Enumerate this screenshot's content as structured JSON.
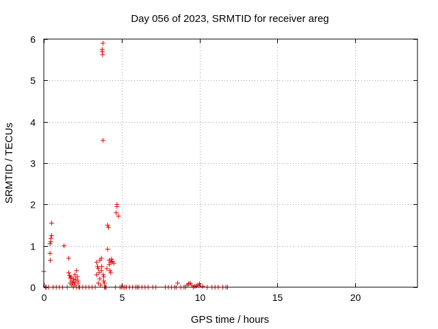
{
  "chart_data": {
    "type": "scatter",
    "title": "Day 056 of 2023, SRMTID for receiver areg",
    "xlabel": "GPS time / hours",
    "ylabel": "SRMTID / TECUs",
    "xlim": [
      0,
      24
    ],
    "ylim": [
      0,
      6
    ],
    "xticks": [
      0,
      5,
      10,
      15,
      20
    ],
    "xtick_labels": [
      "0",
      "5",
      "10",
      "15",
      "20"
    ],
    "yticks": [
      0,
      1,
      2,
      3,
      4,
      5,
      6
    ],
    "ytick_labels": [
      "0",
      "1",
      "2",
      "3",
      "4",
      "5",
      "6"
    ],
    "grid": true,
    "marker": "+",
    "color": "#dd0000",
    "series": [
      {
        "name": "SRMTID",
        "x": [
          0.0,
          0.1,
          0.15,
          0.3,
          0.4,
          0.4,
          0.42,
          0.45,
          0.45,
          0.5,
          0.5,
          0.6,
          0.8,
          1.0,
          1.2,
          1.3,
          1.5,
          1.6,
          1.6,
          1.65,
          1.7,
          1.7,
          1.75,
          1.8,
          1.8,
          1.85,
          1.9,
          1.9,
          1.95,
          2.0,
          2.0,
          2.05,
          2.1,
          2.1,
          2.15,
          2.2,
          2.2,
          2.25,
          2.3,
          2.5,
          2.7,
          2.9,
          3.1,
          3.3,
          3.4,
          3.4,
          3.45,
          3.5,
          3.5,
          3.55,
          3.6,
          3.6,
          3.65,
          3.7,
          3.7,
          3.72,
          3.75,
          3.75,
          3.78,
          3.8,
          3.8,
          3.82,
          3.85,
          3.85,
          3.9,
          3.9,
          3.95,
          4.0,
          4.05,
          4.1,
          4.1,
          4.15,
          4.2,
          4.2,
          4.25,
          4.3,
          4.3,
          4.35,
          4.4,
          4.5,
          4.6,
          4.65,
          4.7,
          4.7,
          4.8,
          4.9,
          5.0,
          5.1,
          5.2,
          5.3,
          5.5,
          5.7,
          5.9,
          6.0,
          6.1,
          6.3,
          6.5,
          6.7,
          7.0,
          7.2,
          7.8,
          8.0,
          8.2,
          8.4,
          8.5,
          8.6,
          8.8,
          9.0,
          9.1,
          9.2,
          9.3,
          9.4,
          9.5,
          9.6,
          9.7,
          9.8,
          9.9,
          10.0,
          10.2,
          10.5,
          10.8,
          11.0,
          11.2,
          11.5,
          11.7,
          11.8
        ],
        "y": [
          0.38,
          0.0,
          0.0,
          0.0,
          1.05,
          0.82,
          0.65,
          1.18,
          1.1,
          1.25,
          1.55,
          0.0,
          0.0,
          0.0,
          0.0,
          1.0,
          0.0,
          0.35,
          0.7,
          0.28,
          0.22,
          0.1,
          0.25,
          0.15,
          0.05,
          0.1,
          0.2,
          0.0,
          0.12,
          0.3,
          0.05,
          0.18,
          0.4,
          0.0,
          0.25,
          0.1,
          0.15,
          0.0,
          0.0,
          0.0,
          0.0,
          0.0,
          0.0,
          0.0,
          0.6,
          0.3,
          0.5,
          0.45,
          0.1,
          0.35,
          0.65,
          0.2,
          0.05,
          0.7,
          0.4,
          0.5,
          5.75,
          5.7,
          5.62,
          5.9,
          3.55,
          0.3,
          0.25,
          0.15,
          0.1,
          0.0,
          0.0,
          0.0,
          0.45,
          1.5,
          0.92,
          1.45,
          0.65,
          0.55,
          0.4,
          0.6,
          0.35,
          0.68,
          0.62,
          0.58,
          0.0,
          1.8,
          1.95,
          2.0,
          1.72,
          0.0,
          0.0,
          0.0,
          0.0,
          0.0,
          0.0,
          0.0,
          0.0,
          0.0,
          0.0,
          0.0,
          0.0,
          0.0,
          0.0,
          0.0,
          0.0,
          0.0,
          0.0,
          0.0,
          0.0,
          0.1,
          0.0,
          0.0,
          0.0,
          0.05,
          0.08,
          0.1,
          0.05,
          0.0,
          0.02,
          0.03,
          0.05,
          0.08,
          0.02,
          0.0,
          0.0,
          0.0,
          0.0,
          0.0,
          0.0,
          0.0
        ]
      }
    ]
  }
}
